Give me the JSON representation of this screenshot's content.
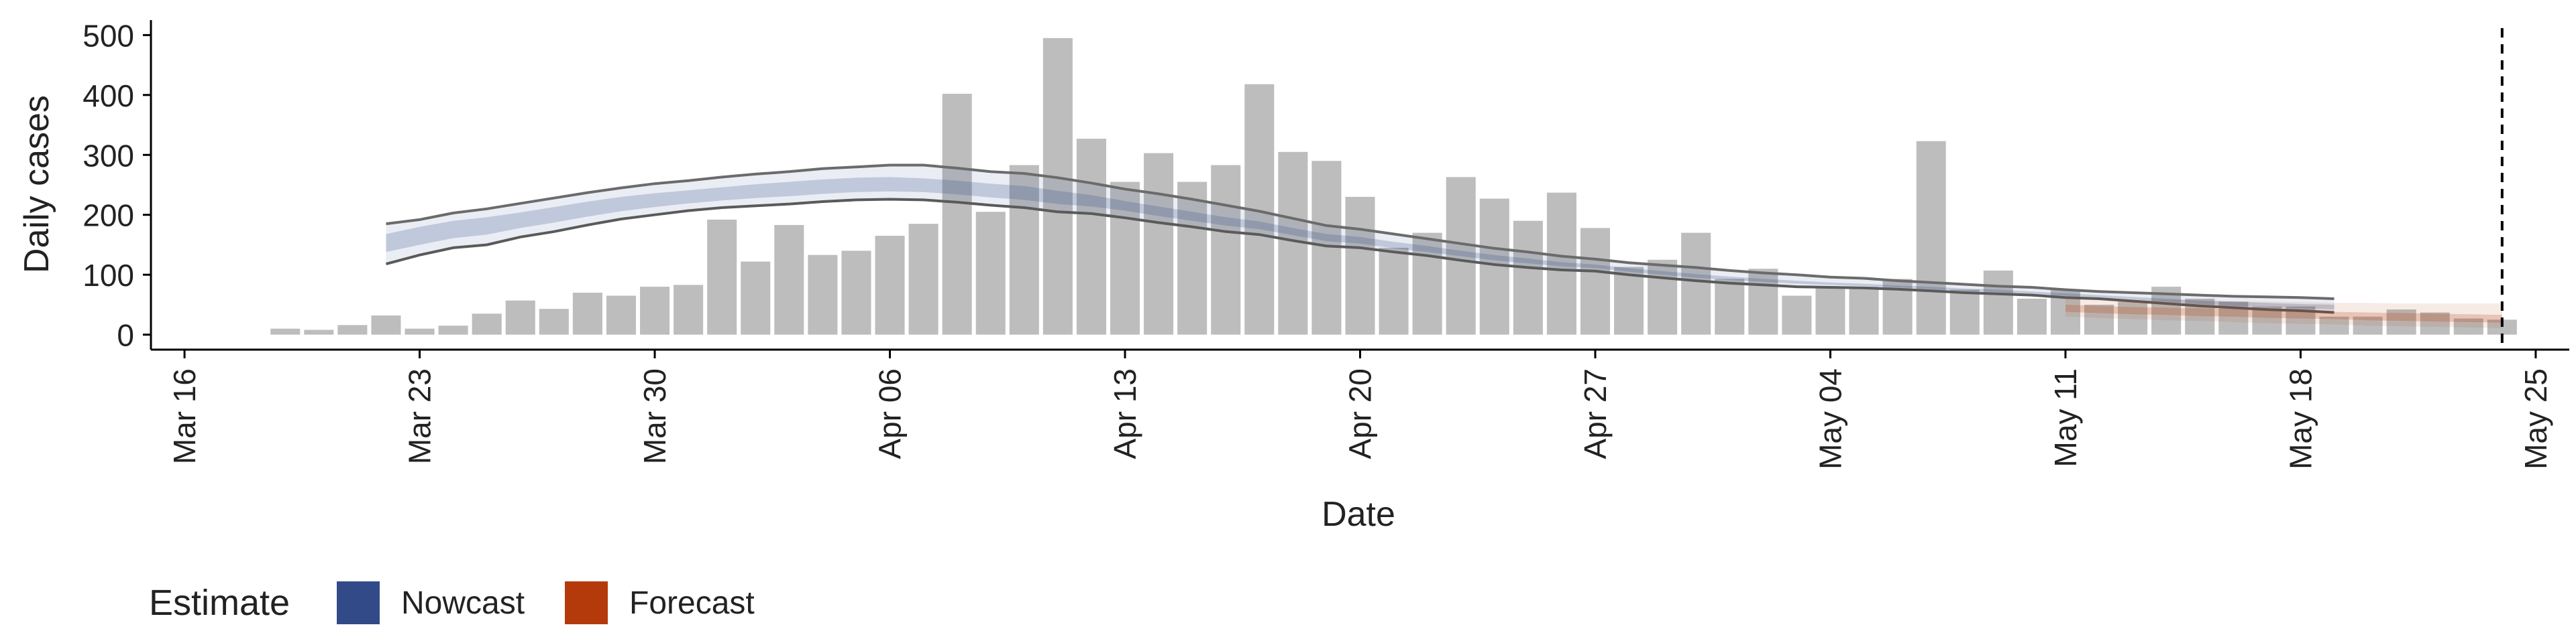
{
  "chart_data": {
    "type": "bar",
    "ylabel": "Daily cases",
    "xlabel": "Date",
    "ylim": [
      -25,
      525
    ],
    "yticks": [
      0,
      100,
      200,
      300,
      400,
      500
    ],
    "xlim": [
      "2020-03-15",
      "2020-05-26"
    ],
    "xticks": [
      {
        "date": "2020-03-16",
        "label": "Mar 16"
      },
      {
        "date": "2020-03-23",
        "label": "Mar 23"
      },
      {
        "date": "2020-03-30",
        "label": "Mar 30"
      },
      {
        "date": "2020-04-06",
        "label": "Apr 06"
      },
      {
        "date": "2020-04-13",
        "label": "Apr 13"
      },
      {
        "date": "2020-04-20",
        "label": "Apr 20"
      },
      {
        "date": "2020-04-27",
        "label": "Apr 27"
      },
      {
        "date": "2020-05-04",
        "label": "May 04"
      },
      {
        "date": "2020-05-11",
        "label": "May 11"
      },
      {
        "date": "2020-05-18",
        "label": "May 18"
      },
      {
        "date": "2020-05-25",
        "label": "May 25"
      }
    ],
    "bars": {
      "start_date": "2020-03-19",
      "color": "#bdbdbd",
      "values": [
        10,
        8,
        16,
        32,
        10,
        15,
        35,
        57,
        43,
        70,
        65,
        80,
        83,
        192,
        122,
        183,
        133,
        140,
        165,
        185,
        402,
        205,
        283,
        495,
        327,
        255,
        303,
        255,
        283,
        418,
        305,
        290,
        230,
        145,
        170,
        263,
        227,
        190,
        237,
        178,
        113,
        125,
        170,
        93,
        110,
        65,
        80,
        80,
        93,
        323,
        75,
        107,
        60,
        75,
        50,
        55,
        80,
        60,
        55,
        47,
        47,
        30,
        30,
        42,
        37,
        27,
        25
      ]
    },
    "series": [
      {
        "name": "Nowcast",
        "color": "#2f4a8a",
        "start_date": "2020-03-22",
        "outer_lower": [
          118,
          133,
          145,
          150,
          163,
          172,
          183,
          193,
          200,
          207,
          212,
          215,
          218,
          222,
          225,
          226,
          225,
          221,
          216,
          212,
          205,
          202,
          195,
          187,
          180,
          172,
          167,
          157,
          148,
          145,
          138,
          132,
          124,
          117,
          112,
          108,
          106,
          100,
          95,
          90,
          86,
          83,
          80,
          79,
          78,
          76,
          73,
          70,
          68,
          66,
          62,
          60,
          56,
          52,
          48,
          45,
          42,
          40,
          37
        ],
        "inner_lower": [
          138,
          150,
          161,
          167,
          178,
          187,
          197,
          206,
          213,
          219,
          224,
          228,
          231,
          235,
          238,
          239,
          238,
          234,
          229,
          225,
          218,
          214,
          207,
          198,
          190,
          182,
          176,
          166,
          156,
          152,
          144,
          138,
          131,
          124,
          119,
          114,
          111,
          105,
          100,
          95,
          91,
          88,
          85,
          83,
          81,
          79,
          76,
          73,
          71,
          68,
          65,
          62,
          59,
          55,
          51,
          48,
          46,
          44,
          42
        ],
        "inner_upper": [
          168,
          180,
          190,
          196,
          204,
          213,
          222,
          230,
          236,
          241,
          246,
          251,
          255,
          259,
          262,
          263,
          261,
          257,
          252,
          248,
          240,
          233,
          223,
          214,
          205,
          196,
          189,
          178,
          168,
          163,
          155,
          148,
          140,
          133,
          127,
          121,
          117,
          111,
          106,
          101,
          97,
          93,
          90,
          87,
          85,
          82,
          80,
          77,
          75,
          72,
          69,
          66,
          63,
          60,
          57,
          55,
          53,
          51,
          50
        ],
        "outer_upper": [
          185,
          192,
          203,
          210,
          219,
          228,
          237,
          245,
          252,
          257,
          263,
          268,
          272,
          277,
          280,
          283,
          283,
          278,
          272,
          269,
          262,
          253,
          243,
          235,
          226,
          216,
          206,
          194,
          182,
          176,
          168,
          160,
          152,
          144,
          138,
          131,
          126,
          120,
          116,
          112,
          107,
          103,
          100,
          96,
          94,
          90,
          87,
          84,
          81,
          79,
          75,
          72,
          70,
          68,
          66,
          64,
          63,
          62,
          60
        ]
      },
      {
        "name": "Forecast",
        "color": "#b33b0a",
        "start_date": "2020-05-11",
        "outer_lower": [
          30,
          28,
          26,
          24,
          23,
          21,
          19,
          18,
          17,
          15,
          14,
          13,
          12,
          11
        ],
        "inner_lower": [
          38,
          36,
          34,
          33,
          31,
          30,
          28,
          27,
          26,
          24,
          23,
          22,
          21,
          20
        ],
        "inner_upper": [
          50,
          48,
          46,
          45,
          44,
          43,
          41,
          40,
          38,
          37,
          36,
          35,
          34,
          33
        ],
        "outer_upper": [
          62,
          60,
          59,
          58,
          57,
          56,
          55,
          54,
          53,
          53,
          52,
          52,
          52,
          52
        ]
      }
    ],
    "vline_date": "2020-05-24",
    "legend": {
      "title": "Estimate",
      "position": "bottom-left",
      "items": [
        {
          "label": "Nowcast",
          "color": "#2f4a8a"
        },
        {
          "label": "Forecast",
          "color": "#b33b0a"
        }
      ]
    }
  }
}
